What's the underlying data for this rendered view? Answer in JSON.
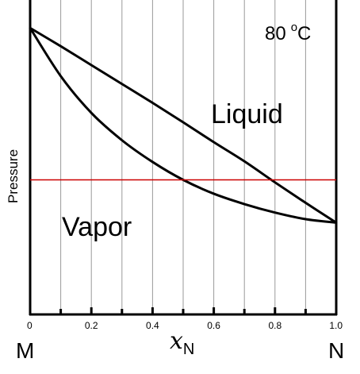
{
  "chart_data": {
    "type": "line",
    "title": "",
    "xlabel_main": "x",
    "xlabel_sub": "N",
    "ylabel": "Pressure",
    "xlim": [
      0,
      1.0
    ],
    "ylim": [
      0,
      100
    ],
    "x_ticks": [
      "0",
      "0.2",
      "0.4",
      "0.6",
      "0.8",
      "1.0"
    ],
    "x_tick_values": [
      0,
      0.2,
      0.4,
      0.6,
      0.8,
      1.0
    ],
    "minor_tick_values": [
      0.1,
      0.3,
      0.5,
      0.7,
      0.9
    ],
    "gridlines_x": [
      0.1,
      0.2,
      0.3,
      0.4,
      0.5,
      0.6,
      0.7,
      0.8,
      0.9
    ],
    "grid": true,
    "temperature_value": "80",
    "temperature_unit_sup": "o",
    "temperature_unit": "C",
    "left_component": "M",
    "right_component": "N",
    "regions": {
      "liquid": "Liquid",
      "vapor": "Vapor"
    },
    "series": [
      {
        "key": "liquid_line",
        "color": "#000000",
        "x": [
          0,
          0.1,
          0.2,
          0.3,
          0.4,
          0.5,
          0.6,
          0.7,
          0.8,
          0.9,
          1.0
        ],
        "y": [
          91.1,
          85.3,
          79.3,
          73.3,
          67.3,
          61.1,
          54.8,
          48.7,
          42.0,
          35.5,
          29.2
        ]
      },
      {
        "key": "vapor_line",
        "color": "#000000",
        "x": [
          0,
          0.1,
          0.2,
          0.3,
          0.4,
          0.5,
          0.6,
          0.7,
          0.8,
          0.9,
          1.0
        ],
        "y": [
          91.1,
          75.8,
          64.1,
          55.4,
          48.5,
          42.8,
          38.4,
          35.1,
          32.4,
          30.3,
          29.2
        ]
      }
    ],
    "reference_line": {
      "y": 42.8,
      "color": "#cc0000"
    }
  }
}
